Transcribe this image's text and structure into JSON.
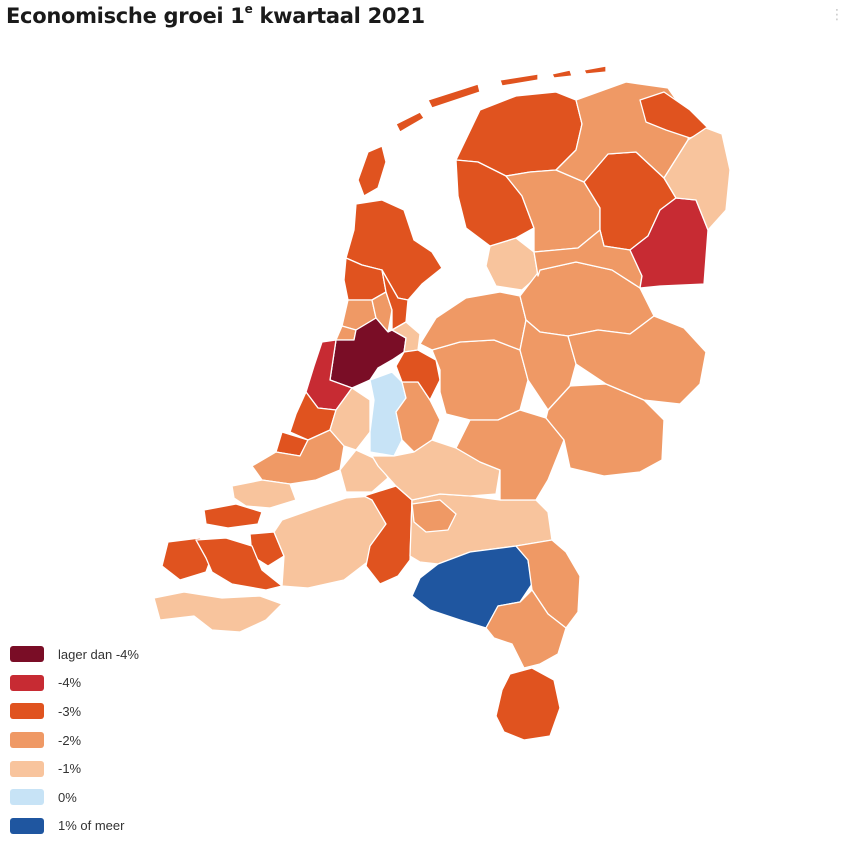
{
  "header": {
    "title_main": "Economische groei 1",
    "title_sup": "e",
    "title_tail": " kwartaal 2021"
  },
  "colors": {
    "lt4": "#7a0d26",
    "m4": "#c72b33",
    "m3": "#e0531f",
    "m2": "#ef9965",
    "m1": "#f8c49d",
    "z0": "#c7e3f6",
    "p1": "#1f56a0"
  },
  "legend": {
    "items": [
      {
        "label": "lager dan -4%",
        "color": "#7a0d26"
      },
      {
        "label": "-4%",
        "color": "#c72b33"
      },
      {
        "label": "-3%",
        "color": "#e0531f"
      },
      {
        "label": "-2%",
        "color": "#ef9965"
      },
      {
        "label": "-1%",
        "color": "#f8c49d"
      },
      {
        "label": "0%",
        "color": "#c7e3f6"
      },
      {
        "label": "1% of meer",
        "color": "#1f56a0"
      }
    ]
  }
}
